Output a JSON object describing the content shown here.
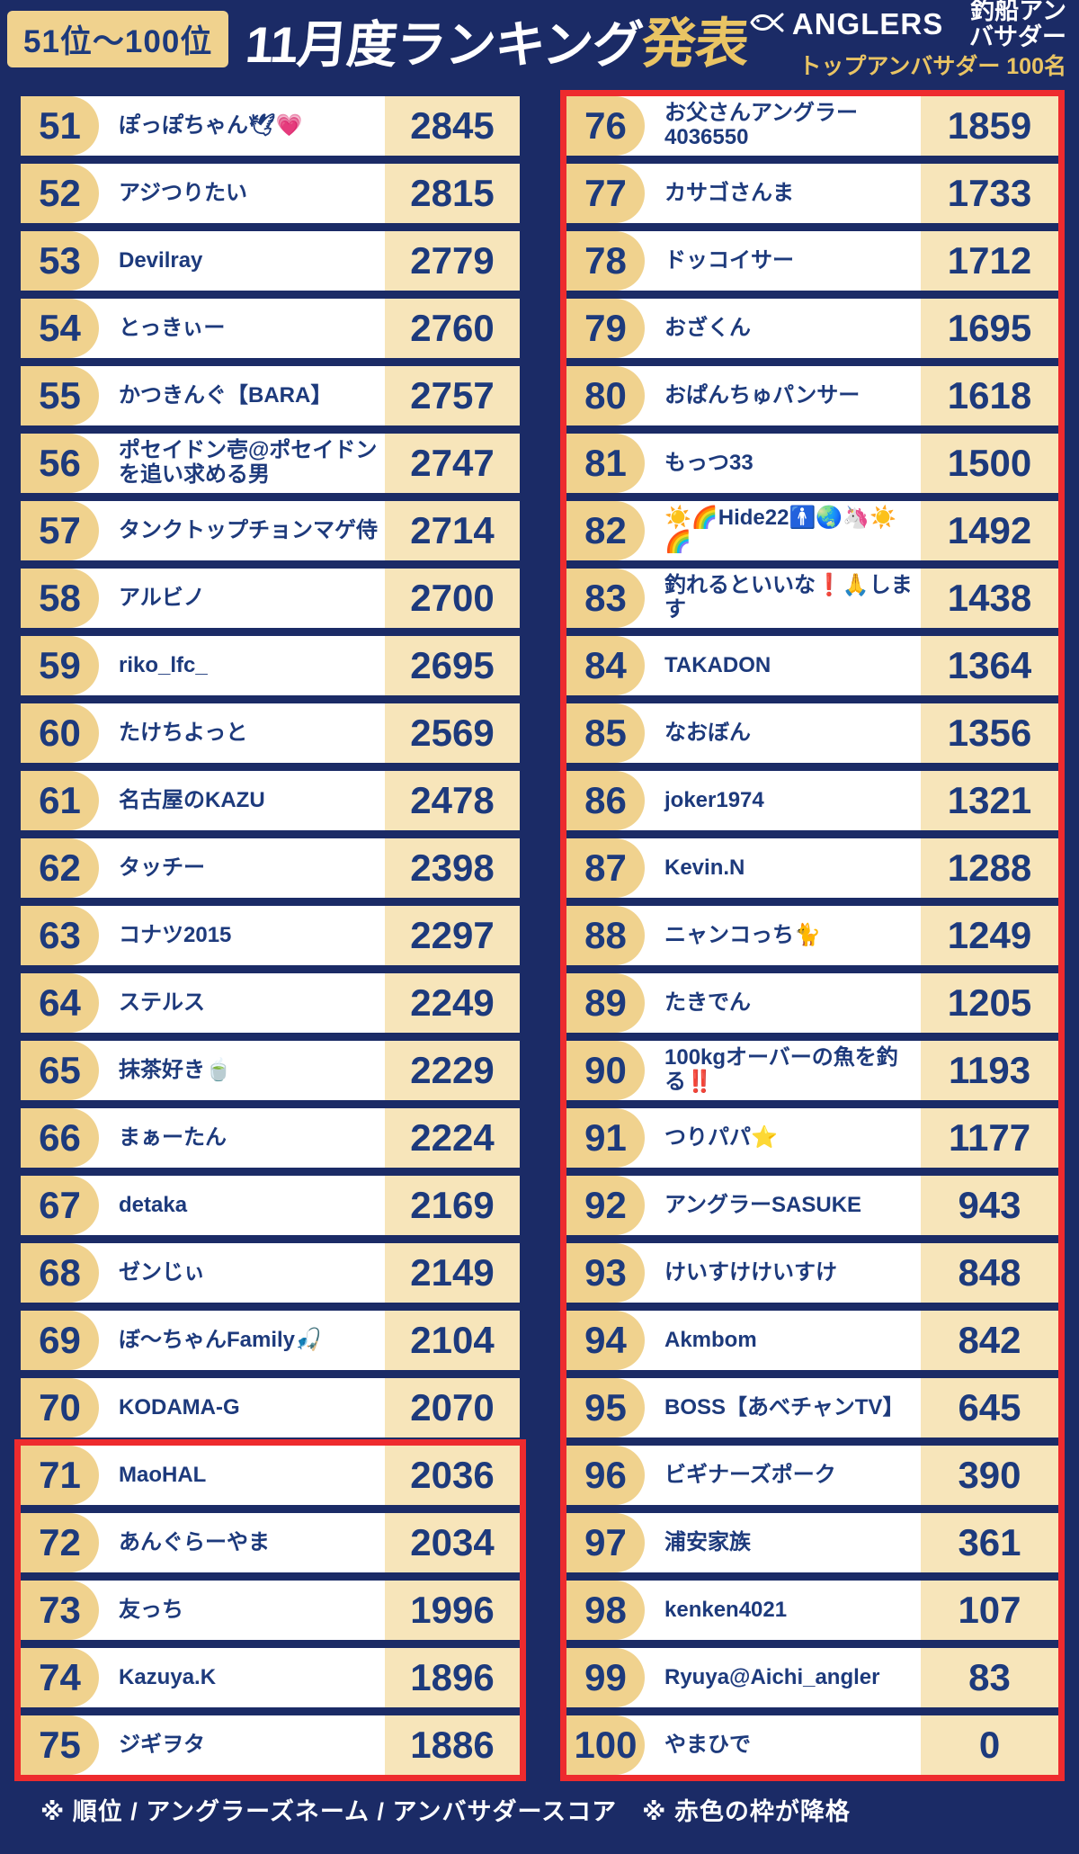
{
  "header": {
    "range_badge": "51位～100位",
    "title_main": "11月度ランキング",
    "title_accent": "発表",
    "brand_name": "ANGLERS",
    "brand_suffix": "釣船アンバサダー",
    "brand_sub": "トップアンバサダー 100名"
  },
  "footer": {
    "note": "※ 順位 / アングラーズネーム / アンバサダースコア　※ 赤色の枠が降格"
  },
  "colors": {
    "background_navy": "#1B2B66",
    "text_navy": "#1D3A7C",
    "rank_pill_tan": "#F0D28E",
    "score_tan": "#F7E5BA",
    "demotion_red": "#EE2B2E",
    "accent_gold": "#E9C464"
  },
  "ranking": {
    "left": [
      {
        "rank": "51",
        "name": "ぽっぽちゃん🕊💗",
        "score": "2845",
        "demoted": false
      },
      {
        "rank": "52",
        "name": "アジつりたい",
        "score": "2815",
        "demoted": false
      },
      {
        "rank": "53",
        "name": "Devilray",
        "score": "2779",
        "demoted": false
      },
      {
        "rank": "54",
        "name": "とっきぃー",
        "score": "2760",
        "demoted": false
      },
      {
        "rank": "55",
        "name": "かつきんぐ【BARA】",
        "score": "2757",
        "demoted": false
      },
      {
        "rank": "56",
        "name": "ポセイドン壱@ポセイドンを追い求める男",
        "score": "2747",
        "demoted": false
      },
      {
        "rank": "57",
        "name": "タンクトップチョンマゲ侍",
        "score": "2714",
        "demoted": false
      },
      {
        "rank": "58",
        "name": "アルビノ",
        "score": "2700",
        "demoted": false
      },
      {
        "rank": "59",
        "name": "riko_lfc_",
        "score": "2695",
        "demoted": false
      },
      {
        "rank": "60",
        "name": "たけちよっと",
        "score": "2569",
        "demoted": false
      },
      {
        "rank": "61",
        "name": "名古屋のKAZU",
        "score": "2478",
        "demoted": false
      },
      {
        "rank": "62",
        "name": "タッチー",
        "score": "2398",
        "demoted": false
      },
      {
        "rank": "63",
        "name": "コナツ2015",
        "score": "2297",
        "demoted": false
      },
      {
        "rank": "64",
        "name": "ステルス",
        "score": "2249",
        "demoted": false
      },
      {
        "rank": "65",
        "name": "抹茶好き🍵",
        "score": "2229",
        "demoted": false
      },
      {
        "rank": "66",
        "name": "まぁーたん",
        "score": "2224",
        "demoted": false
      },
      {
        "rank": "67",
        "name": "detaka",
        "score": "2169",
        "demoted": false
      },
      {
        "rank": "68",
        "name": "ゼンじぃ",
        "score": "2149",
        "demoted": false
      },
      {
        "rank": "69",
        "name": "ぼ〜ちゃんFamily🎣",
        "score": "2104",
        "demoted": false
      },
      {
        "rank": "70",
        "name": "KODAMA-G",
        "score": "2070",
        "demoted": false
      },
      {
        "rank": "71",
        "name": "MaoHAL",
        "score": "2036",
        "demoted": true
      },
      {
        "rank": "72",
        "name": "あんぐらーやま",
        "score": "2034",
        "demoted": true
      },
      {
        "rank": "73",
        "name": "友っち",
        "score": "1996",
        "demoted": true
      },
      {
        "rank": "74",
        "name": "Kazuya.K",
        "score": "1896",
        "demoted": true
      },
      {
        "rank": "75",
        "name": "ジギヲタ",
        "score": "1886",
        "demoted": true
      }
    ],
    "right": [
      {
        "rank": "76",
        "name": "お父さんアングラー4036550",
        "score": "1859",
        "demoted": true
      },
      {
        "rank": "77",
        "name": "カサゴさんま",
        "score": "1733",
        "demoted": true
      },
      {
        "rank": "78",
        "name": "ドッコイサー",
        "score": "1712",
        "demoted": true
      },
      {
        "rank": "79",
        "name": "おざくん",
        "score": "1695",
        "demoted": true
      },
      {
        "rank": "80",
        "name": "おぱんちゅパンサー",
        "score": "1618",
        "demoted": true
      },
      {
        "rank": "81",
        "name": "もっつ33",
        "score": "1500",
        "demoted": true
      },
      {
        "rank": "82",
        "name": "☀️🌈Hide22🚹🌏🦄☀️🌈",
        "score": "1492",
        "demoted": true
      },
      {
        "rank": "83",
        "name": "釣れるといいな❗🙏します",
        "score": "1438",
        "demoted": true
      },
      {
        "rank": "84",
        "name": "TAKADON",
        "score": "1364",
        "demoted": true
      },
      {
        "rank": "85",
        "name": "なおぼん",
        "score": "1356",
        "demoted": true
      },
      {
        "rank": "86",
        "name": "joker1974",
        "score": "1321",
        "demoted": true
      },
      {
        "rank": "87",
        "name": "Kevin.N",
        "score": "1288",
        "demoted": true
      },
      {
        "rank": "88",
        "name": "ニャンコっち🐈",
        "score": "1249",
        "demoted": true
      },
      {
        "rank": "89",
        "name": "たきでん",
        "score": "1205",
        "demoted": true
      },
      {
        "rank": "90",
        "name": "100kgオーバーの魚を釣る‼️",
        "score": "1193",
        "demoted": true
      },
      {
        "rank": "91",
        "name": "つりパパ⭐",
        "score": "1177",
        "demoted": true
      },
      {
        "rank": "92",
        "name": "アングラーSASUKE",
        "score": "943",
        "demoted": true
      },
      {
        "rank": "93",
        "name": "けいすけけいすけ",
        "score": "848",
        "demoted": true
      },
      {
        "rank": "94",
        "name": "Akmbom",
        "score": "842",
        "demoted": true
      },
      {
        "rank": "95",
        "name": "BOSS【あべチャンTV】",
        "score": "645",
        "demoted": true
      },
      {
        "rank": "96",
        "name": "ビギナーズポーク",
        "score": "390",
        "demoted": true
      },
      {
        "rank": "97",
        "name": "浦安家族",
        "score": "361",
        "demoted": true
      },
      {
        "rank": "98",
        "name": "kenken4021",
        "score": "107",
        "demoted": true
      },
      {
        "rank": "99",
        "name": "Ryuya@Aichi_angler",
        "score": "83",
        "demoted": true
      },
      {
        "rank": "100",
        "name": "やまひで",
        "score": "0",
        "demoted": true
      }
    ]
  }
}
